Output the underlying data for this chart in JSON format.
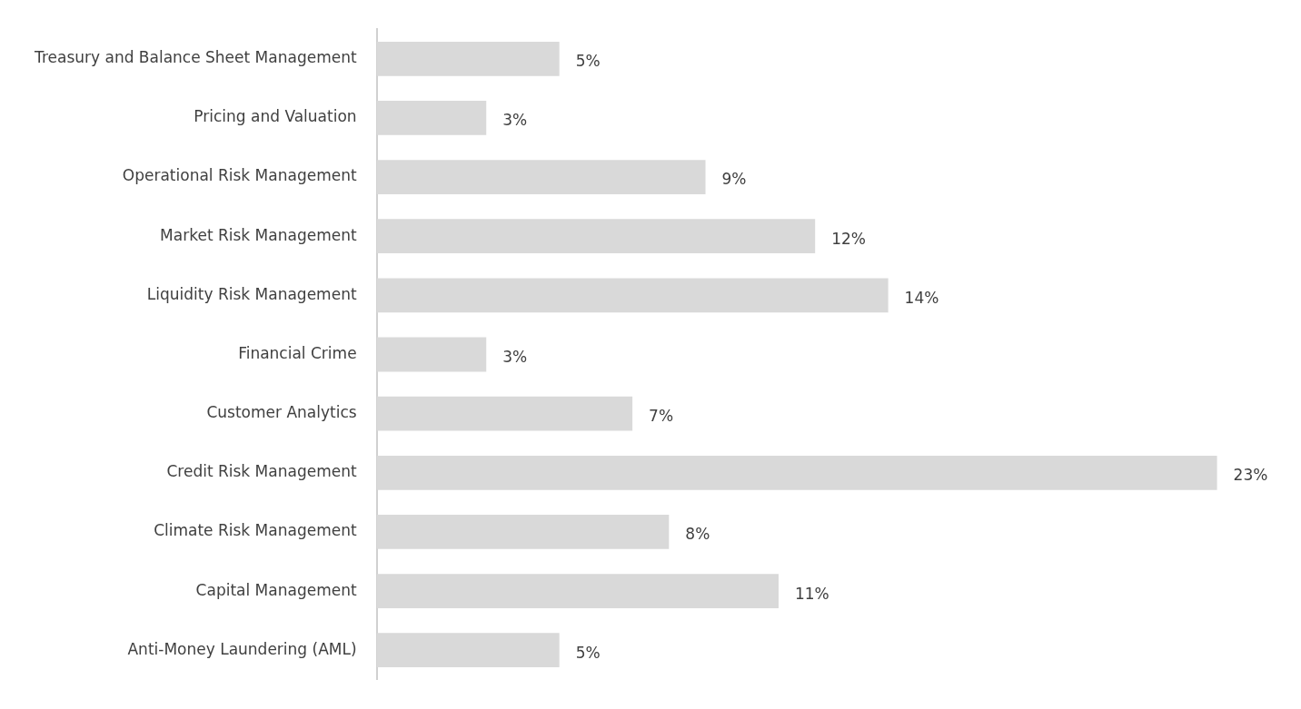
{
  "chart_data": {
    "type": "bar",
    "orientation": "horizontal",
    "categories": [
      "Treasury and Balance Sheet Management",
      "Pricing and Valuation",
      "Operational Risk Management",
      "Market Risk Management",
      "Liquidity Risk Management",
      "Financial Crime",
      "Customer Analytics",
      "Credit Risk Management",
      "Climate Risk Management",
      "Capital Management",
      "Anti-Money Laundering (AML)"
    ],
    "values": [
      5,
      3,
      9,
      12,
      14,
      3,
      7,
      23,
      8,
      11,
      5
    ],
    "value_labels": [
      "5%",
      "3%",
      "9%",
      "12%",
      "14%",
      "3%",
      "7%",
      "23%",
      "8%",
      "11%",
      "5%"
    ],
    "color": "#d9d9d9",
    "legend": false
  }
}
